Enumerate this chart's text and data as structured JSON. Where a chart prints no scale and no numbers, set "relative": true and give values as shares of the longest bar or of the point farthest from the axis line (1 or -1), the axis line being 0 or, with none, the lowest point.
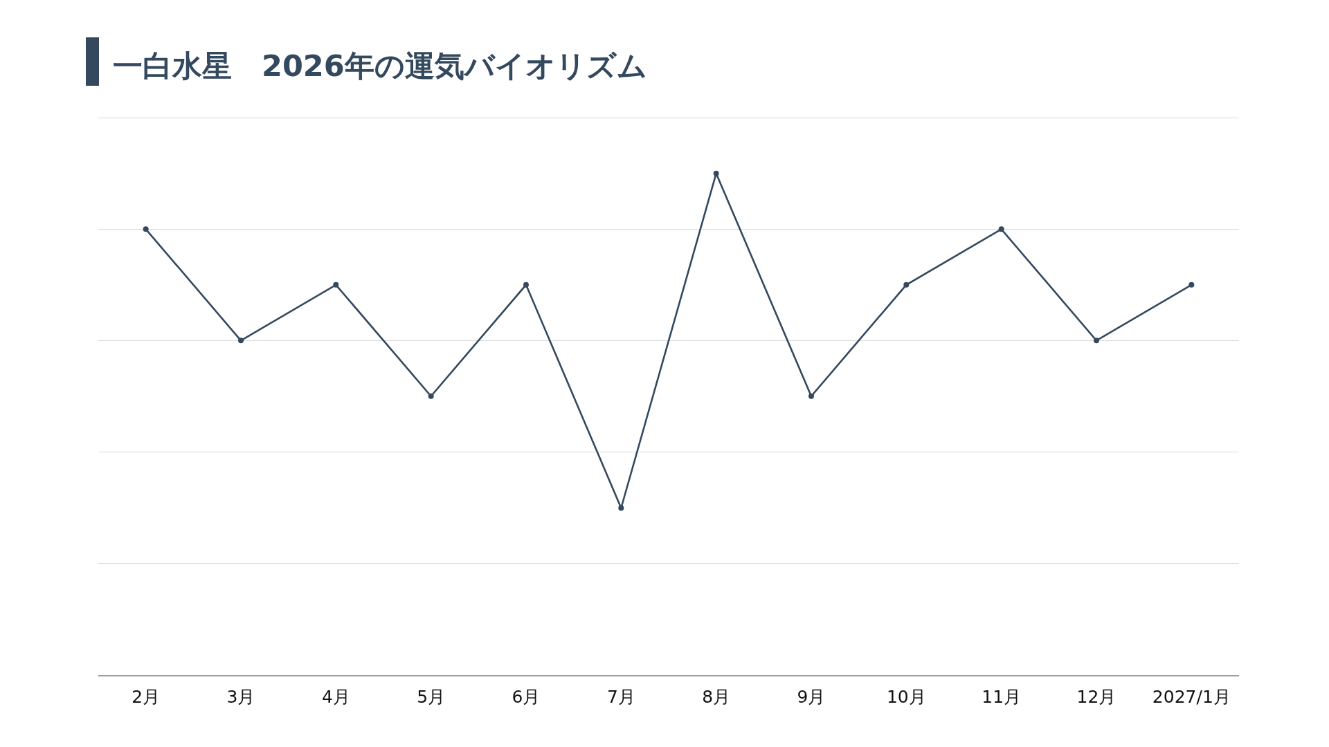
{
  "chart_data": {
    "type": "line",
    "title": "一白水星　2026年の運気バイオリズム",
    "categories": [
      "2月",
      "3月",
      "4月",
      "5月",
      "6月",
      "7月",
      "8月",
      "9月",
      "10月",
      "11月",
      "12月",
      "2027/1月"
    ],
    "series": [
      {
        "color": "#34495e",
        "values": [
          0.889,
          0.667,
          0.778,
          0.556,
          0.778,
          0.333,
          1,
          0.556,
          0.778,
          0.889,
          0.667,
          0.778
        ]
      }
    ],
    "relative": true,
    "grid": "y",
    "marker": "circle",
    "line_style": "solid"
  }
}
